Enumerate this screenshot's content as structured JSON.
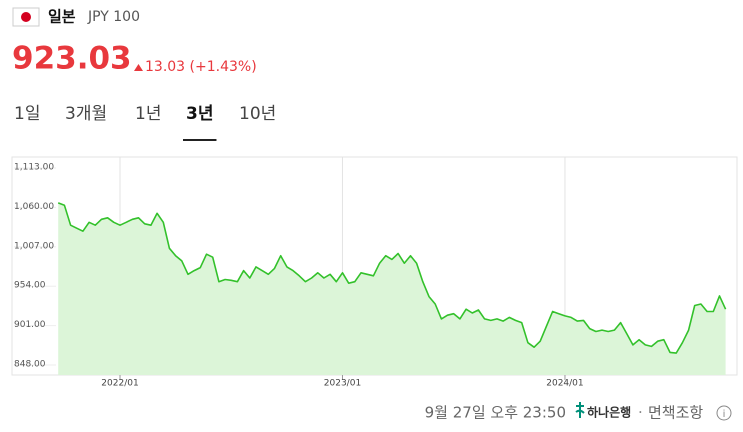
{
  "header": {
    "country": "일본",
    "currency": "JPY 100",
    "price": "923.03",
    "change": "13.03 (+1.43%)"
  },
  "tabs": [
    "1일",
    "3개월",
    "1년",
    "3년",
    "10년"
  ],
  "active_tab": 3,
  "footer": {
    "timestamp": "9월 27일 오후 23:50",
    "bank": "하나은행",
    "disclaimer": "면책조항"
  },
  "chart_data": {
    "type": "area",
    "color": "#33c12b",
    "fill": "#dcf5d8",
    "categories": [
      null,
      null,
      null,
      null,
      null,
      null,
      null,
      null,
      null,
      null,
      "2022/01",
      null,
      null,
      null,
      null,
      null,
      null,
      null,
      null,
      null,
      null,
      null,
      null,
      null,
      null,
      null,
      null,
      null,
      null,
      null,
      null,
      null,
      null,
      null,
      null,
      null,
      null,
      null,
      null,
      null,
      null,
      null,
      null,
      null,
      null,
      null,
      "2023/01",
      null,
      null,
      null,
      null,
      null,
      null,
      null,
      null,
      null,
      null,
      null,
      null,
      null,
      null,
      null,
      null,
      null,
      null,
      null,
      null,
      null,
      null,
      null,
      null,
      null,
      null,
      null,
      null,
      null,
      null,
      null,
      null,
      null,
      null,
      null,
      "2024/01",
      null,
      null,
      null,
      null,
      null,
      null,
      null,
      null,
      null,
      null,
      null,
      null,
      null,
      null,
      null,
      null,
      null,
      null,
      null,
      null,
      null,
      null,
      null,
      null,
      null,
      null
    ],
    "values": [
      1066,
      1063,
      1036,
      1032,
      1028,
      1040,
      1036,
      1044,
      1046,
      1040,
      1036,
      1040,
      1044,
      1046,
      1038,
      1036,
      1052,
      1040,
      1005,
      995,
      988,
      970,
      975,
      979,
      997,
      993,
      960,
      963,
      962,
      960,
      975,
      965,
      980,
      975,
      970,
      978,
      995,
      980,
      975,
      968,
      960,
      965,
      972,
      965,
      970,
      960,
      972,
      958,
      960,
      972,
      970,
      968,
      985,
      995,
      990,
      998,
      985,
      995,
      985,
      960,
      940,
      930,
      910,
      915,
      917,
      910,
      923,
      918,
      922,
      910,
      908,
      910,
      907,
      912,
      908,
      905,
      878,
      872,
      880,
      900,
      920,
      917,
      914,
      912,
      907,
      908,
      897,
      893,
      895,
      893,
      895,
      905,
      890,
      875,
      882,
      875,
      873,
      880,
      882,
      865,
      864,
      878,
      895,
      928,
      930,
      920,
      920,
      941,
      923.03
    ],
    "ylim": [
      848,
      1113
    ],
    "yticks": [
      {
        "value": 848,
        "label": "848.00"
      },
      {
        "value": 901,
        "label": "901.00"
      },
      {
        "value": 954,
        "label": "954.00"
      },
      {
        "value": 1007,
        "label": "1,007.00"
      },
      {
        "value": 1060,
        "label": "1,060.00"
      },
      {
        "value": 1113,
        "label": "1,113.00"
      }
    ]
  }
}
